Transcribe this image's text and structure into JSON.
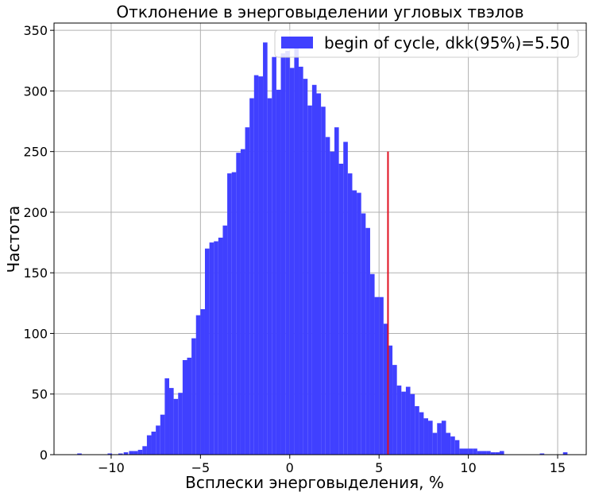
{
  "chart_data": {
    "type": "bar",
    "title": "Отклонение в энерговыделении угловых твэлов",
    "xlabel": "Всплески энерговыделения, %",
    "ylabel": "Частота",
    "xlim": [
      -13.2,
      16.6
    ],
    "ylim": [
      0,
      356
    ],
    "grid": true,
    "legend_position": "top-right",
    "bar_color": "#4040ff",
    "bin_width": 0.25,
    "xticks": [
      -10,
      -5,
      0,
      5,
      10,
      15
    ],
    "xtick_labels": [
      "−10",
      "−5",
      "0",
      "5",
      "10",
      "15"
    ],
    "yticks": [
      0,
      50,
      100,
      150,
      200,
      250,
      300,
      350
    ],
    "ytick_labels": [
      "0",
      "50",
      "100",
      "150",
      "200",
      "250",
      "300",
      "350"
    ],
    "series": [
      {
        "name": "begin of cycle, dkk(95%)=5.50",
        "bins": [
          [
            -11.9,
            1
          ],
          [
            -10.2,
            1
          ],
          [
            -9.6,
            1
          ],
          [
            -9.3,
            2
          ],
          [
            -9.0,
            3
          ],
          [
            -8.75,
            3
          ],
          [
            -8.5,
            4
          ],
          [
            -8.25,
            7
          ],
          [
            -8.0,
            16
          ],
          [
            -7.75,
            19
          ],
          [
            -7.5,
            24
          ],
          [
            -7.25,
            33
          ],
          [
            -7.0,
            63
          ],
          [
            -6.75,
            55
          ],
          [
            -6.5,
            46
          ],
          [
            -6.25,
            51
          ],
          [
            -6.0,
            78
          ],
          [
            -5.75,
            80
          ],
          [
            -5.5,
            96
          ],
          [
            -5.25,
            115
          ],
          [
            -5.0,
            120
          ],
          [
            -4.75,
            170
          ],
          [
            -4.5,
            175
          ],
          [
            -4.25,
            176
          ],
          [
            -4.0,
            179
          ],
          [
            -3.75,
            189
          ],
          [
            -3.5,
            232
          ],
          [
            -3.25,
            233
          ],
          [
            -3.0,
            249
          ],
          [
            -2.75,
            252
          ],
          [
            -2.5,
            270
          ],
          [
            -2.25,
            294
          ],
          [
            -2.0,
            313
          ],
          [
            -1.75,
            312
          ],
          [
            -1.5,
            340
          ],
          [
            -1.25,
            294
          ],
          [
            -1.0,
            328
          ],
          [
            -0.75,
            301
          ],
          [
            -0.5,
            331
          ],
          [
            -0.25,
            333
          ],
          [
            0.0,
            319
          ],
          [
            0.25,
            340
          ],
          [
            0.5,
            320
          ],
          [
            0.75,
            310
          ],
          [
            1.0,
            288
          ],
          [
            1.25,
            305
          ],
          [
            1.5,
            298
          ],
          [
            1.75,
            287
          ],
          [
            2.0,
            262
          ],
          [
            2.25,
            250
          ],
          [
            2.5,
            270
          ],
          [
            2.75,
            240
          ],
          [
            3.0,
            258
          ],
          [
            3.25,
            232
          ],
          [
            3.5,
            218
          ],
          [
            3.75,
            216
          ],
          [
            4.0,
            199
          ],
          [
            4.25,
            187
          ],
          [
            4.5,
            149
          ],
          [
            4.75,
            130
          ],
          [
            5.0,
            130
          ],
          [
            5.25,
            108
          ],
          [
            5.5,
            90
          ],
          [
            5.75,
            74
          ],
          [
            6.0,
            57
          ],
          [
            6.25,
            52
          ],
          [
            6.5,
            56
          ],
          [
            6.75,
            50
          ],
          [
            7.0,
            40
          ],
          [
            7.25,
            35
          ],
          [
            7.5,
            30
          ],
          [
            7.75,
            28
          ],
          [
            8.0,
            18
          ],
          [
            8.25,
            26
          ],
          [
            8.5,
            28
          ],
          [
            8.75,
            18
          ],
          [
            9.0,
            15
          ],
          [
            9.25,
            12
          ],
          [
            9.5,
            5
          ],
          [
            9.75,
            5
          ],
          [
            10.0,
            5
          ],
          [
            10.25,
            5
          ],
          [
            10.5,
            3
          ],
          [
            10.75,
            3
          ],
          [
            11.0,
            3
          ],
          [
            11.25,
            2
          ],
          [
            11.5,
            2
          ],
          [
            11.75,
            3
          ],
          [
            14.0,
            1
          ],
          [
            15.3,
            2
          ]
        ]
      }
    ],
    "vline": {
      "x": 5.5,
      "y_top": 250,
      "color": "#e01020"
    }
  }
}
